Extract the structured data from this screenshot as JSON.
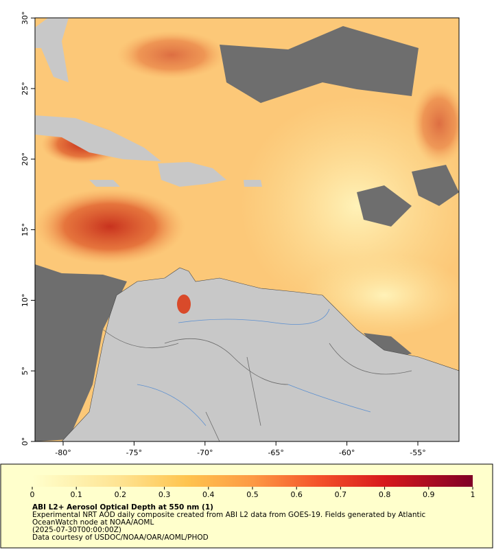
{
  "map": {
    "lat_labels": [
      "0°",
      "5°",
      "10°",
      "15°",
      "20°",
      "25°",
      "30°"
    ],
    "lon_labels": [
      "-80°",
      "-75°",
      "-70°",
      "-65°",
      "-60°",
      "-55°"
    ]
  },
  "colorbar": {
    "ticks": [
      0,
      0.1,
      0.2,
      0.3,
      0.4,
      0.5,
      0.6,
      0.7,
      0.8,
      0.9,
      1
    ]
  },
  "caption": {
    "title": "ABI L2+ Aerosol Optical Depth at 550 nm (1)",
    "lines": [
      "Experimental NRT AOD daily composite created from ABI L2 data from GOES-19. Fields generated by Atlantic",
      "OceanWatch node at NOAA/AOML",
      "(2025-07-30T00:00:00Z)",
      "Data courtesy of USDOC/NOAA/OAR/AOML/PHOD"
    ]
  }
}
